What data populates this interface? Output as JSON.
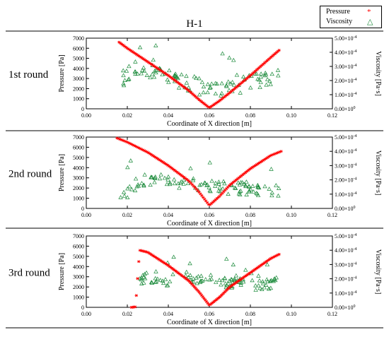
{
  "title": "H-1",
  "legend": [
    {
      "label": "Pressure",
      "symbol": "*",
      "color": "#ff0000"
    },
    {
      "label": "Viscosity",
      "symbol": "△",
      "color": "#1a8a3a"
    }
  ],
  "chart_data": [
    {
      "type": "scatter",
      "row_label": "1st round",
      "xlabel": "Coordinate of X direction [m]",
      "ylabel": "Pressure [Pa]",
      "y2label": "Viscosity [Pa·s]",
      "xlim": [
        0.0,
        0.12
      ],
      "ylim": [
        0,
        7000
      ],
      "y2lim": [
        0,
        0.0005
      ],
      "xticks": [
        "0.00",
        "0.02",
        "0.04",
        "0.06",
        "0.08",
        "0.10",
        "0.12"
      ],
      "yticks": [
        "0",
        "1000",
        "2000",
        "3000",
        "4000",
        "5000",
        "6000",
        "7000"
      ],
      "y2ticks": [
        "0.00x10^0",
        "1.00x10^-4",
        "2.00x10^-4",
        "3.00x10^-4",
        "4.00x10^-4",
        "5.00x10^-4"
      ],
      "pressure": {
        "x": [
          0.016,
          0.02,
          0.03,
          0.04,
          0.05,
          0.055,
          0.06,
          0.065,
          0.07,
          0.08,
          0.09,
          0.094
        ],
        "y": [
          6600,
          6000,
          4650,
          3300,
          1800,
          900,
          100,
          800,
          1600,
          3300,
          5100,
          5800
        ]
      },
      "viscosity": {
        "x": [
          0.018,
          0.02,
          0.025,
          0.03,
          0.035,
          0.04,
          0.045,
          0.05,
          0.055,
          0.06,
          0.065,
          0.07,
          0.075,
          0.08,
          0.085,
          0.09,
          0.094
        ],
        "y": [
          0.00022,
          0.00025,
          0.00028,
          0.00026,
          0.00024,
          0.00022,
          0.0002,
          0.00018,
          0.00016,
          0.00015,
          0.00015,
          0.00016,
          0.00017,
          0.00018,
          0.0002,
          0.00021,
          0.00022
        ],
        "spread": 0.00012
      }
    },
    {
      "type": "scatter",
      "row_label": "2nd round",
      "xlabel": "Coordinate of X direction [m]",
      "ylabel": "Pressure [Pa]",
      "y2label": "Viscosity [Pa·s]",
      "xlim": [
        0.0,
        0.12
      ],
      "ylim": [
        0,
        7000
      ],
      "y2lim": [
        0,
        0.0005
      ],
      "xticks": [
        "0.00",
        "0.02",
        "0.04",
        "0.06",
        "0.08",
        "0.10",
        "0.12"
      ],
      "yticks": [
        "0",
        "1000",
        "2000",
        "3000",
        "4000",
        "5000",
        "6000",
        "7000"
      ],
      "y2ticks": [
        "0.00x10^0",
        "1.00x10^-4",
        "2.00x10^-4",
        "3.00x10^-4",
        "4.00x10^-4",
        "5.00x10^-4"
      ],
      "pressure": {
        "x": [
          0.015,
          0.02,
          0.03,
          0.04,
          0.05,
          0.055,
          0.06,
          0.065,
          0.07,
          0.08,
          0.09,
          0.095
        ],
        "y": [
          6900,
          6500,
          5500,
          4200,
          2700,
          1600,
          300,
          1200,
          2300,
          3900,
          5200,
          5600
        ]
      },
      "viscosity": {
        "x": [
          0.016,
          0.02,
          0.025,
          0.03,
          0.035,
          0.04,
          0.045,
          0.05,
          0.055,
          0.06,
          0.065,
          0.07,
          0.075,
          0.08,
          0.085,
          0.09,
          0.094
        ],
        "y": [
          0.00011,
          0.00012,
          0.00018,
          0.00021,
          0.0002,
          0.00019,
          0.00018,
          0.00017,
          0.00016,
          0.00015,
          0.00015,
          0.00014,
          0.00014,
          0.00014,
          0.00013,
          0.00013,
          0.00013
        ],
        "spread": 9e-05
      }
    },
    {
      "type": "scatter",
      "row_label": "3rd round",
      "xlabel": "Coordinate of X direction [m]",
      "ylabel": "Pressure [Pa]",
      "y2label": "Viscosity [Pa·s]",
      "xlim": [
        0.0,
        0.12
      ],
      "ylim": [
        0,
        7000
      ],
      "y2lim": [
        0,
        0.0005
      ],
      "xticks": [
        "0.00",
        "0.02",
        "0.04",
        "0.06",
        "0.08",
        "0.10",
        "0.12"
      ],
      "yticks": [
        "0",
        "1000",
        "2000",
        "3000",
        "4000",
        "5000",
        "6000",
        "7000"
      ],
      "y2ticks": [
        "0.00x10^0",
        "1.00x10^-4",
        "2.00x10^-4",
        "3.00x10^-4",
        "4.00x10^-4",
        "5.00x10^-4"
      ],
      "pressure": {
        "x": [
          0.022,
          0.024,
          0.026,
          0.03,
          0.04,
          0.05,
          0.055,
          0.06,
          0.065,
          0.07,
          0.08,
          0.09,
          0.094
        ],
        "y": [
          0,
          50,
          5600,
          5400,
          4100,
          2600,
          1500,
          200,
          1000,
          2000,
          3400,
          4800,
          5200
        ]
      },
      "viscosity": {
        "x": [
          0.026,
          0.03,
          0.035,
          0.04,
          0.045,
          0.05,
          0.055,
          0.06,
          0.065,
          0.07,
          0.075,
          0.08,
          0.085,
          0.09,
          0.094
        ],
        "y": [
          0.0002,
          0.00021,
          0.0002,
          0.00019,
          0.0002,
          0.00021,
          0.0002,
          0.00019,
          0.00018,
          0.00017,
          0.00017,
          0.00016,
          0.00016,
          0.00017,
          0.00017
        ],
        "spread": 8e-05
      }
    }
  ]
}
